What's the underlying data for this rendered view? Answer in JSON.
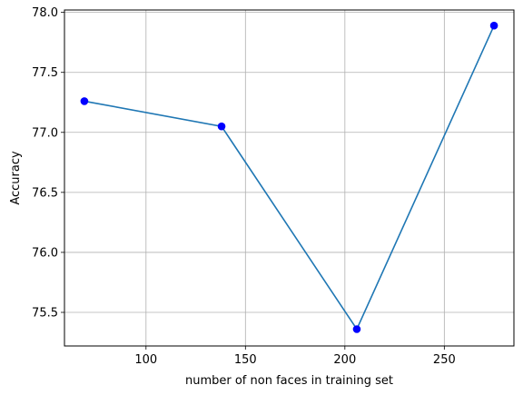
{
  "chart_data": {
    "type": "line",
    "title": "",
    "xlabel": "number of non faces in training set",
    "ylabel": "Accuracy",
    "xlim": [
      59,
      285
    ],
    "ylim": [
      75.22,
      78.02
    ],
    "xticks": [
      100,
      150,
      200,
      250
    ],
    "xtick_labels": [
      "100",
      "150",
      "200",
      "250"
    ],
    "yticks": [
      75.5,
      76.0,
      76.5,
      77.0,
      77.5,
      78.0
    ],
    "ytick_labels": [
      "75.5",
      "76.0",
      "76.5",
      "77.0",
      "77.5",
      "78.0"
    ],
    "grid": true,
    "series": [
      {
        "x": [
          69,
          138,
          206,
          275
        ],
        "y": [
          77.26,
          77.05,
          75.36,
          77.89
        ],
        "line_color": "#1f77b4",
        "marker_color": "#0000ff"
      }
    ]
  }
}
